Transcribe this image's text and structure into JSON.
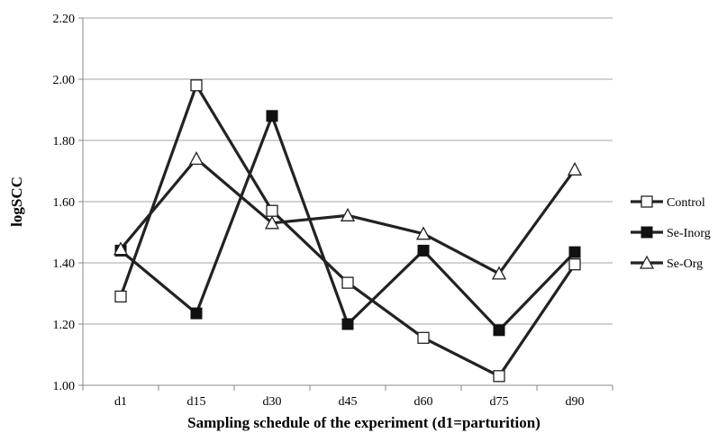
{
  "chart_data": {
    "type": "line",
    "title": "",
    "xlabel": "Sampling schedule of the experiment (d1=parturition)",
    "ylabel": "logSCC",
    "categories": [
      "d1",
      "d15",
      "d30",
      "d45",
      "d60",
      "d75",
      "d90"
    ],
    "ylim": [
      1.0,
      2.2
    ],
    "yticks": [
      "1.00",
      "1.20",
      "1.40",
      "1.60",
      "1.80",
      "2.00",
      "2.20"
    ],
    "grid": true,
    "legend_position": "right",
    "series": [
      {
        "name": "Control",
        "marker": "open-square",
        "color": "#222222",
        "values": [
          1.29,
          1.98,
          1.57,
          1.335,
          1.155,
          1.03,
          1.395
        ]
      },
      {
        "name": "Se-Inorg",
        "marker": "filled-square",
        "color": "#222222",
        "values": [
          1.44,
          1.235,
          1.88,
          1.2,
          1.44,
          1.18,
          1.435
        ]
      },
      {
        "name": "Se-Org",
        "marker": "open-triangle",
        "color": "#222222",
        "values": [
          1.445,
          1.74,
          1.53,
          1.555,
          1.495,
          1.365,
          1.705
        ]
      }
    ]
  }
}
